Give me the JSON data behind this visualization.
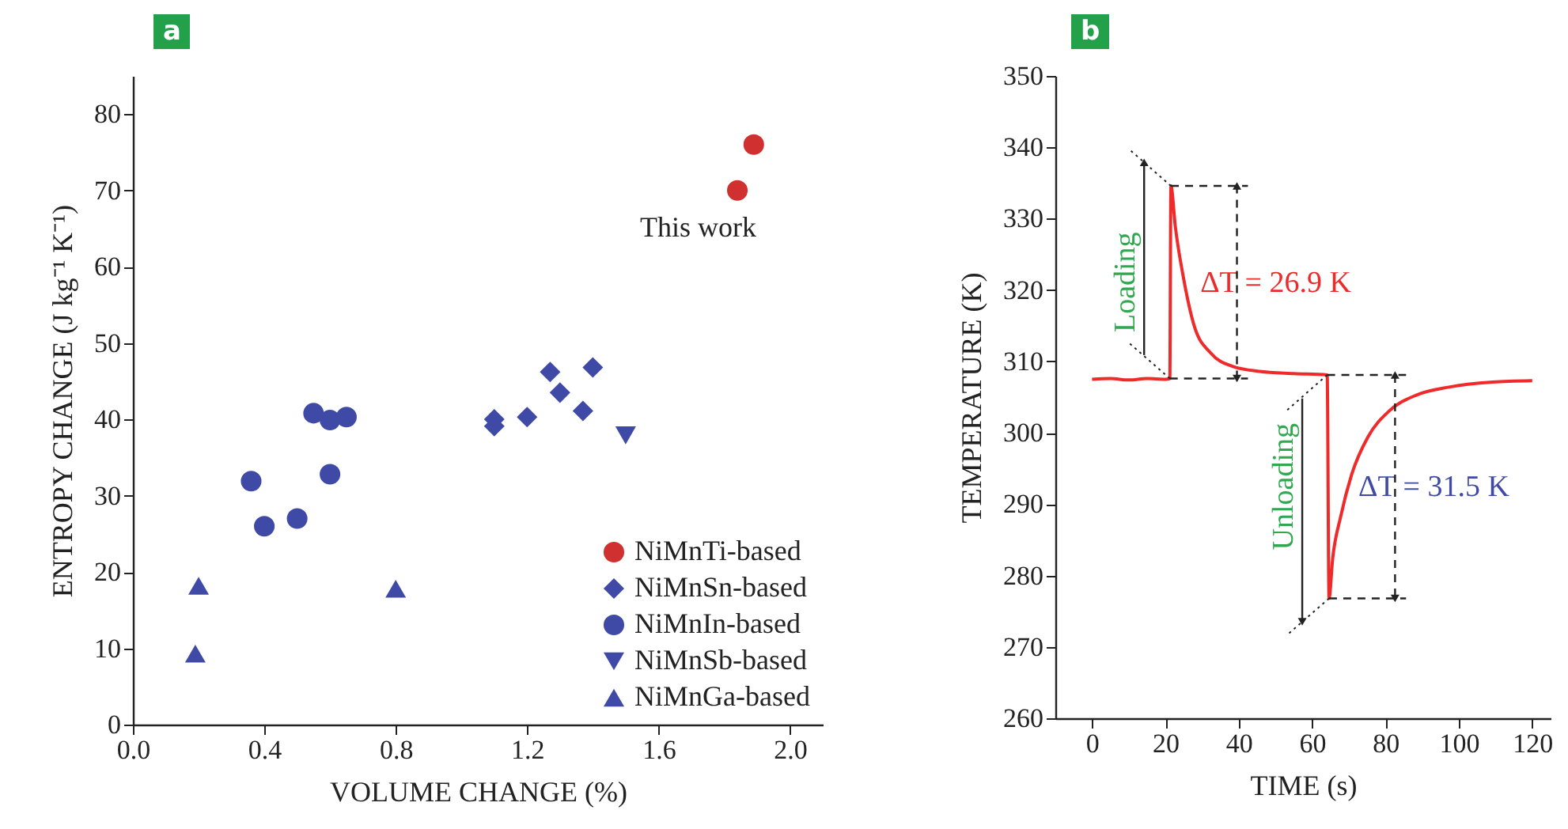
{
  "chart_data": [
    {
      "type": "scatter",
      "title": "a",
      "xlabel": "VOLUME CHANGE (%)",
      "ylabel": "ENTROPY CHANGE (J kg⁻¹ K⁻¹)",
      "xlim": [
        0,
        2.1
      ],
      "ylim": [
        0,
        85
      ],
      "xticks": [
        {
          "value": 0,
          "label": "0.0"
        },
        {
          "value": 0.4,
          "label": "0.4"
        },
        {
          "value": 0.8,
          "label": "0.8"
        },
        {
          "value": 1.2,
          "label": "1.2"
        },
        {
          "value": 1.6,
          "label": "1.6"
        },
        {
          "value": 2.0,
          "label": "2.0"
        }
      ],
      "yticks": [
        0,
        10,
        20,
        30,
        40,
        50,
        60,
        70,
        80
      ],
      "legend": "bottom right",
      "series": [
        {
          "name": "NiMnTi-based",
          "color": "#d0302f",
          "marker": "circle",
          "x": [
            1.89,
            1.84
          ],
          "values": [
            76.0,
            70.0
          ]
        },
        {
          "name": "NiMnSn-based",
          "color": "#3f4aa6",
          "marker": "diamond",
          "x": [
            1.1,
            1.1,
            1.2,
            1.27,
            1.3,
            1.37,
            1.4
          ],
          "values": [
            39.1,
            40.0,
            40.3,
            46.2,
            43.5,
            41.1,
            46.8
          ]
        },
        {
          "name": "NiMnIn-based",
          "color": "#3f4aa6",
          "marker": "circle",
          "x": [
            0.36,
            0.4,
            0.5,
            0.55,
            0.6,
            0.65,
            0.6
          ],
          "values": [
            31.9,
            26.0,
            27.0,
            40.8,
            39.9,
            40.3,
            32.8
          ]
        },
        {
          "name": "NiMnSb-based",
          "color": "#3f4aa6",
          "marker": "triangle-down",
          "x": [
            1.5
          ],
          "values": [
            37.9
          ]
        },
        {
          "name": "NiMnGa-based",
          "color": "#3f4aa6",
          "marker": "triangle",
          "x": [
            0.2,
            0.19,
            0.8
          ],
          "values": [
            18.2,
            9.3,
            17.8
          ]
        }
      ],
      "annotations": [
        "This work"
      ]
    },
    {
      "type": "line",
      "title": "b",
      "xlabel": "TIME (s)",
      "ylabel": "TEMPERATURE (K)",
      "xlim": [
        -10,
        125
      ],
      "ylim": [
        260,
        350
      ],
      "xticks": [
        0,
        20,
        40,
        60,
        80,
        100,
        120
      ],
      "yticks": [
        260,
        270,
        280,
        290,
        300,
        310,
        320,
        330,
        340,
        350
      ],
      "series": [
        {
          "color": "#ee2a2a",
          "x": [
            0,
            5,
            10,
            15,
            20,
            21.2,
            21.5,
            22.7,
            25,
            27.9,
            32.3,
            38.3,
            45.6,
            55,
            64.1,
            64.6,
            65.6,
            67.8,
            70.8,
            75.2,
            81.1,
            88.5,
            97.3,
            109.2,
            120
          ],
          "values": [
            307.5,
            307.6,
            307.4,
            307.6,
            307.5,
            307.6,
            334.6,
            328.9,
            321.5,
            314.9,
            311.2,
            309.3,
            308.6,
            308.3,
            308.1,
            276.8,
            282.4,
            288.3,
            294.2,
            299.4,
            303.1,
            305.3,
            306.4,
            307.1,
            307.3
          ]
        }
      ],
      "annotations": [
        {
          "text": "Loading",
          "x": 21.2,
          "y": 307.6
        },
        {
          "text": "Unloading",
          "x": 64.1,
          "y": 308.1
        },
        "ΔT = 26.9 K",
        "ΔT = 31.5 K"
      ]
    }
  ]
}
